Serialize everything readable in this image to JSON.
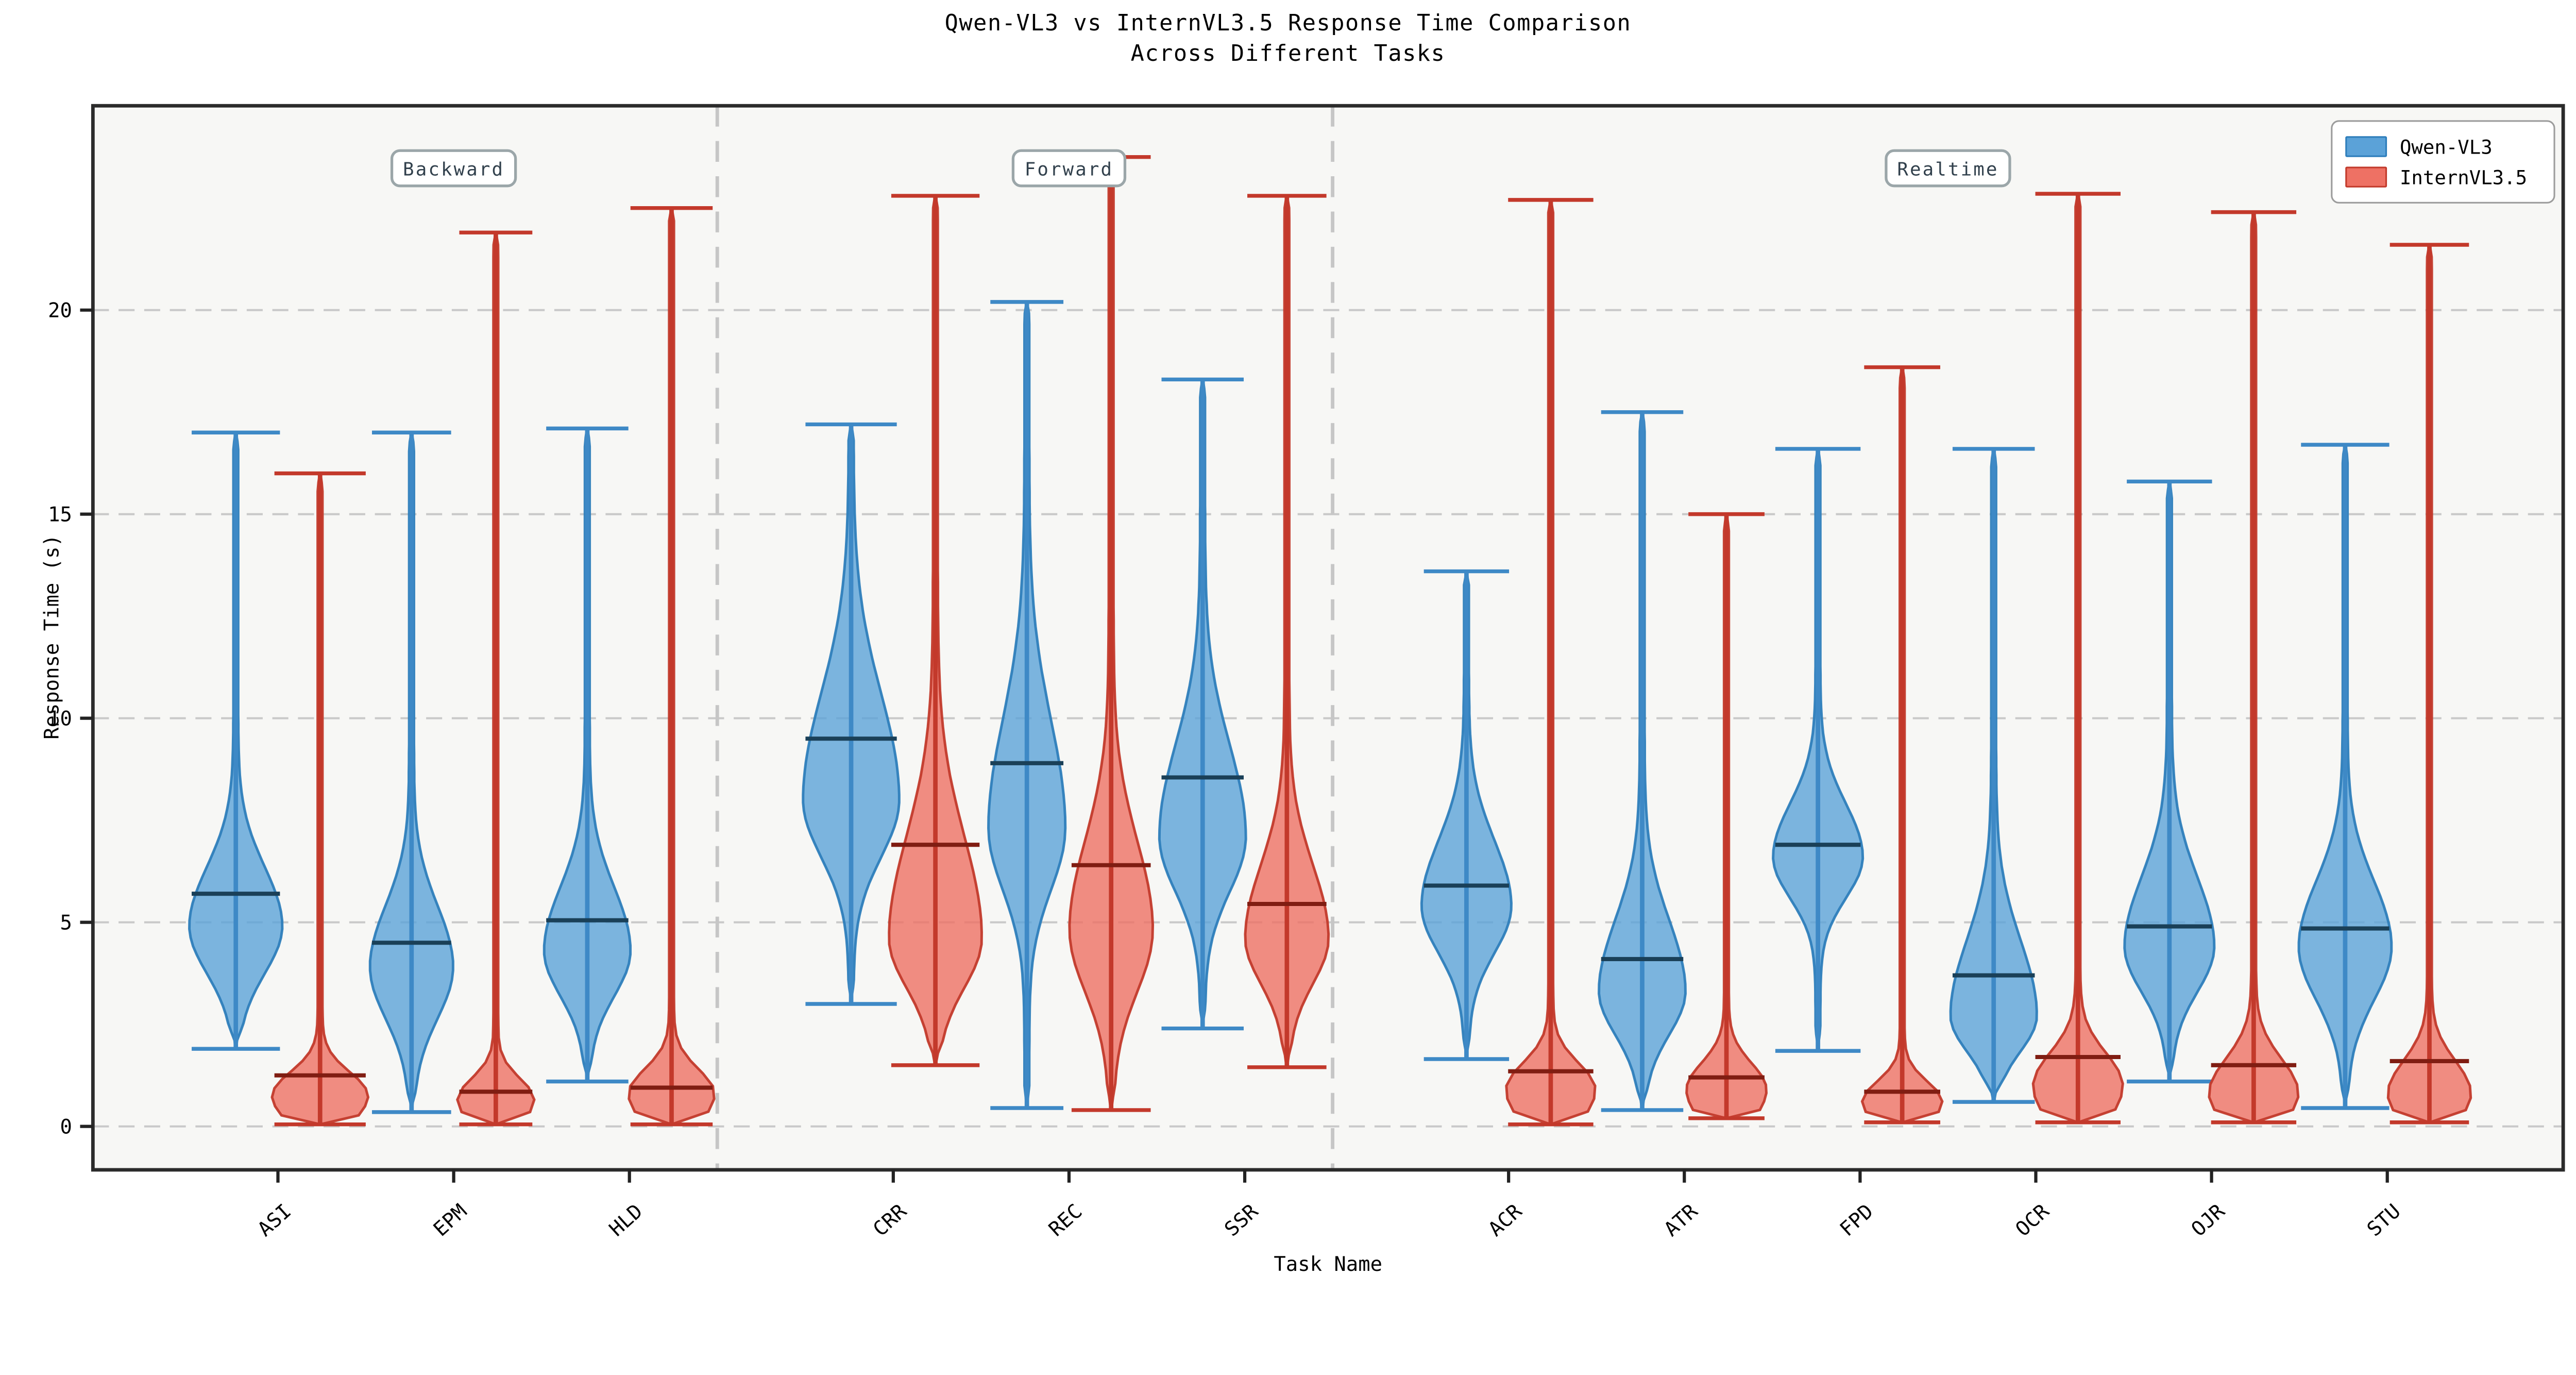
{
  "title": {
    "line1": "Qwen-VL3 vs InternVL3.5 Response Time Comparison",
    "line2": "Across Different Tasks"
  },
  "axes": {
    "x_label": "Task Name",
    "y_label": "Response Time (s)",
    "y_ticks": [
      "0",
      "5",
      "10",
      "15",
      "20"
    ],
    "y_tick_values": [
      0,
      5,
      10,
      15,
      20
    ],
    "y_range": [
      -1.1,
      25.0
    ],
    "grid": "horizontal-dashed"
  },
  "legend": {
    "position": "top-right",
    "items": [
      {
        "label": "Qwen-VL3",
        "color": "#5BA2D8",
        "border": "#2E7EBB"
      },
      {
        "label": "InternVL3.5",
        "color": "#EE7164",
        "border": "#C23A2B"
      }
    ]
  },
  "groups": [
    {
      "label": "Backward",
      "tasks": [
        "ASI",
        "EPM",
        "HLD"
      ]
    },
    {
      "label": "Forward",
      "tasks": [
        "CRR",
        "REC",
        "SSR"
      ]
    },
    {
      "label": "Realtime",
      "tasks": [
        "ACR",
        "ATR",
        "FPD",
        "OCR",
        "OJR",
        "STU"
      ]
    }
  ],
  "colors": {
    "plot_bg": "#F7F7F5",
    "grid_line": "#C9C9C9",
    "separator": "#C6C6C6",
    "frame": "#2B2B2B",
    "qwen_fill": "#5BA2D8",
    "qwen_edge": "#2E7EBB",
    "qwen_stem": "#3E89C6",
    "qwen_median": "#1A4058",
    "intern_fill": "#EE7164",
    "intern_edge": "#C23A2B",
    "intern_stem": "#C3392B",
    "intern_median": "#801D12",
    "group_label_text": "#31404C",
    "group_label_border": "#9BA6A9"
  },
  "chart_data": {
    "type": "violin",
    "title": "Qwen-VL3 vs InternVL3.5 Response Time Comparison Across Different Tasks",
    "xlabel": "Task Name",
    "ylabel": "Response Time (s)",
    "ylim": [
      -1.1,
      25.0
    ],
    "categories": [
      "ASI",
      "EPM",
      "HLD",
      "CRR",
      "REC",
      "SSR",
      "ACR",
      "ATR",
      "FPD",
      "OCR",
      "OJR",
      "STU"
    ],
    "legend_position": "upper right",
    "series": [
      {
        "name": "Qwen-VL3",
        "color": "#5BA2D8",
        "stats": [
          {
            "task": "ASI",
            "min": 1.9,
            "max": 17.0,
            "median": 5.7,
            "kde_peak": 4.9,
            "kde_body": [
              2.6,
              7.8
            ],
            "hw": 29
          },
          {
            "task": "EPM",
            "min": 0.35,
            "max": 17.0,
            "median": 4.5,
            "kde_peak": 3.9,
            "kde_body": [
              1.4,
              6.9
            ],
            "hw": 26
          },
          {
            "task": "HLD",
            "min": 1.1,
            "max": 17.1,
            "median": 5.05,
            "kde_peak": 4.3,
            "kde_body": [
              2.1,
              7.4
            ],
            "hw": 27
          },
          {
            "task": "CRR",
            "min": 3.0,
            "max": 17.2,
            "median": 9.5,
            "kde_peak": 8.0,
            "kde_body": [
              5.2,
              13.2
            ],
            "hw": 30
          },
          {
            "task": "REC",
            "min": 0.45,
            "max": 20.2,
            "median": 8.9,
            "kde_peak": 7.3,
            "kde_body": [
              4.3,
              12.6
            ],
            "hw": 24
          },
          {
            "task": "SSR",
            "min": 2.4,
            "max": 18.3,
            "median": 8.55,
            "kde_peak": 7.1,
            "kde_body": [
              4.4,
              11.6
            ],
            "hw": 27
          },
          {
            "task": "ACR",
            "min": 1.65,
            "max": 13.6,
            "median": 5.9,
            "kde_peak": 5.4,
            "kde_body": [
              3.1,
              8.6
            ],
            "hw": 28
          },
          {
            "task": "ATR",
            "min": 0.4,
            "max": 17.5,
            "median": 4.1,
            "kde_peak": 3.3,
            "kde_body": [
              1.2,
              6.8
            ],
            "hw": 27
          },
          {
            "task": "FPD",
            "min": 1.85,
            "max": 16.6,
            "median": 6.9,
            "kde_peak": 6.6,
            "kde_body": [
              4.6,
              9.2
            ],
            "hw": 28
          },
          {
            "task": "OCR",
            "min": 0.6,
            "max": 16.6,
            "median": 3.7,
            "kde_peak": 2.7,
            "kde_body": [
              1.0,
              6.4
            ],
            "hw": 27
          },
          {
            "task": "OJR",
            "min": 1.1,
            "max": 15.8,
            "median": 4.9,
            "kde_peak": 4.4,
            "kde_body": [
              2.2,
              7.8
            ],
            "hw": 28
          },
          {
            "task": "STU",
            "min": 0.45,
            "max": 16.7,
            "median": 4.85,
            "kde_peak": 4.4,
            "kde_body": [
              1.8,
              7.6
            ],
            "hw": 29
          }
        ]
      },
      {
        "name": "InternVL3.5",
        "color": "#EE7164",
        "stats": [
          {
            "task": "ASI",
            "min": 0.05,
            "max": 16.0,
            "median": 1.25,
            "kde_peak": 0.75,
            "kde_body": [
              0.05,
              1.9
            ],
            "hw": 30
          },
          {
            "task": "EPM",
            "min": 0.05,
            "max": 21.9,
            "median": 0.85,
            "kde_peak": 0.65,
            "kde_body": [
              0.05,
              1.7
            ],
            "hw": 24
          },
          {
            "task": "HLD",
            "min": 0.05,
            "max": 22.5,
            "median": 0.95,
            "kde_peak": 0.8,
            "kde_body": [
              0.05,
              2.0
            ],
            "hw": 27
          },
          {
            "task": "CRR",
            "min": 1.5,
            "max": 22.8,
            "median": 6.9,
            "kde_peak": 4.6,
            "kde_body": [
              2.2,
              9.6
            ],
            "hw": 29
          },
          {
            "task": "REC",
            "min": 0.4,
            "max": 23.75,
            "median": 6.4,
            "kde_peak": 4.8,
            "kde_body": [
              1.8,
              9.2
            ],
            "hw": 26
          },
          {
            "task": "SSR",
            "min": 1.45,
            "max": 22.8,
            "median": 5.45,
            "kde_peak": 4.6,
            "kde_body": [
              2.4,
              8.2
            ],
            "hw": 26
          },
          {
            "task": "ACR",
            "min": 0.05,
            "max": 22.7,
            "median": 1.35,
            "kde_peak": 0.9,
            "kde_body": [
              0.05,
              2.2
            ],
            "hw": 28
          },
          {
            "task": "ATR",
            "min": 0.2,
            "max": 15.0,
            "median": 1.2,
            "kde_peak": 0.9,
            "kde_body": [
              0.1,
              2.2
            ],
            "hw": 25
          },
          {
            "task": "FPD",
            "min": 0.1,
            "max": 18.6,
            "median": 0.85,
            "kde_peak": 0.6,
            "kde_body": [
              0.05,
              1.6
            ],
            "hw": 25
          },
          {
            "task": "OCR",
            "min": 0.1,
            "max": 22.85,
            "median": 1.7,
            "kde_peak": 1.0,
            "kde_body": [
              0.05,
              2.6
            ],
            "hw": 28
          },
          {
            "task": "OJR",
            "min": 0.1,
            "max": 22.4,
            "median": 1.5,
            "kde_peak": 0.8,
            "kde_body": [
              0.05,
              2.5
            ],
            "hw": 28
          },
          {
            "task": "STU",
            "min": 0.1,
            "max": 21.6,
            "median": 1.6,
            "kde_peak": 0.8,
            "kde_body": [
              0.05,
              2.4
            ],
            "hw": 26
          }
        ]
      }
    ]
  }
}
